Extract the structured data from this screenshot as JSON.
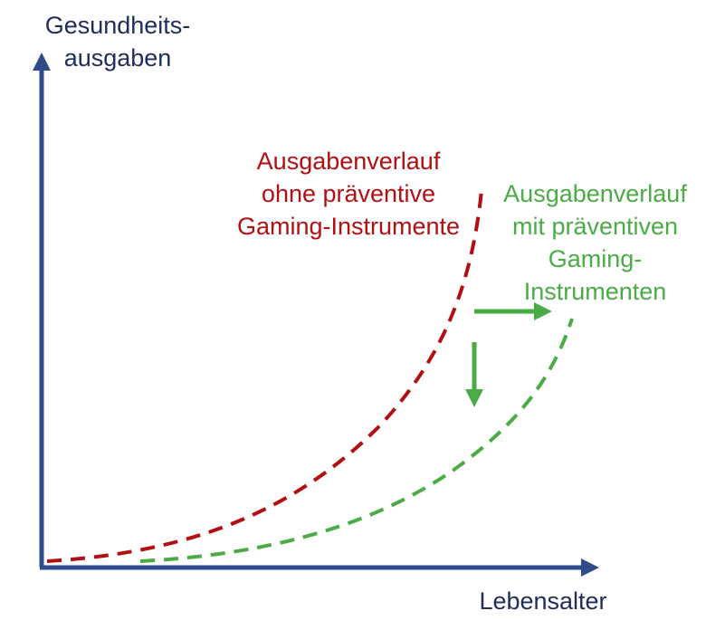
{
  "y_axis": {
    "title_line1": "Gesundheits-",
    "title_line2": "ausgaben"
  },
  "x_axis": {
    "title": "Lebensalter"
  },
  "curves": {
    "without": {
      "line1": "Ausgabenverlauf",
      "line2": "ohne präventive",
      "line3": "Gaming-Instrumente",
      "color": "#b30f12"
    },
    "with": {
      "line1": "Ausgabenverlauf",
      "line2": "mit präventiven",
      "line3": "Gaming-",
      "line4": "Instrumenten",
      "color": "#4bac46"
    }
  },
  "colors": {
    "axis": "#2f4b8a",
    "axis_text": "#1f2d5a",
    "arrow": "#4bac46"
  },
  "icons": {
    "shift_right": "arrow-right-icon",
    "shift_down": "arrow-down-icon"
  }
}
